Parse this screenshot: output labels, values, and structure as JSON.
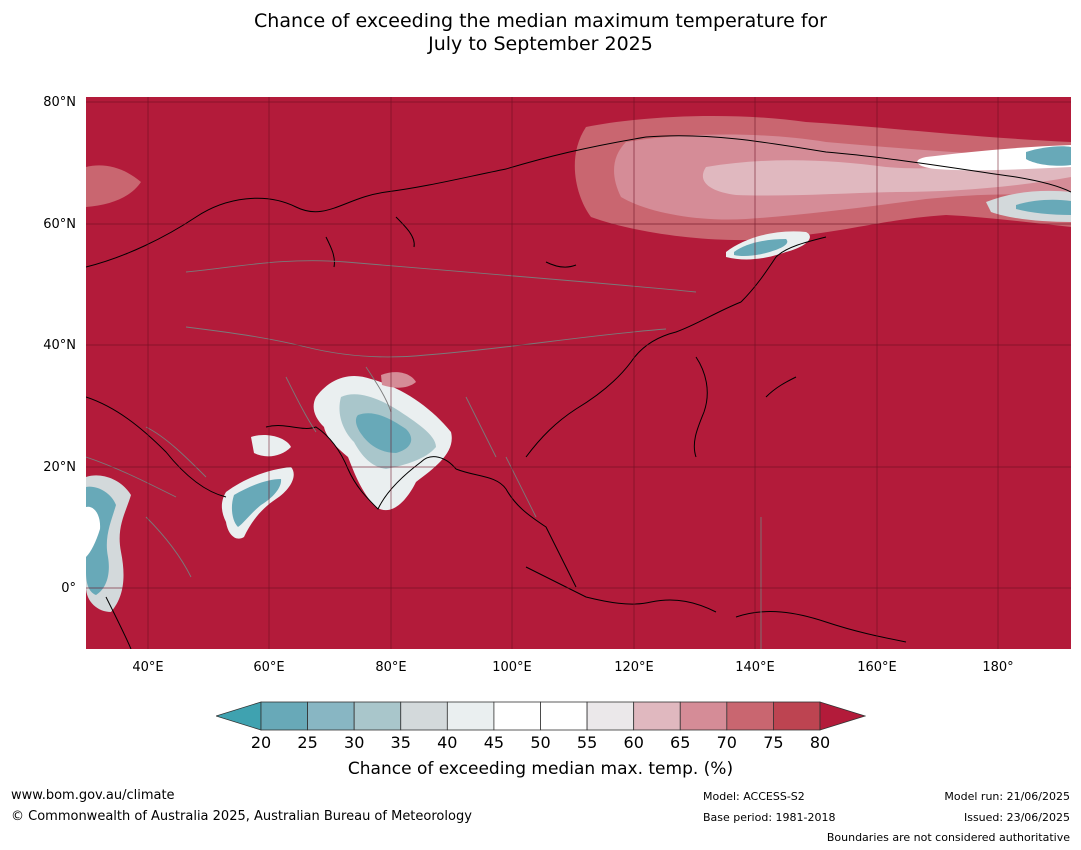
{
  "title": {
    "line1": "Chance of exceeding the median maximum temperature for",
    "line2": "July to September 2025"
  },
  "map": {
    "lat_labels": [
      "80°N",
      "60°N",
      "40°N",
      "20°N",
      "0°"
    ],
    "lon_labels": [
      "40°E",
      "60°E",
      "80°E",
      "100°E",
      "120°E",
      "140°E",
      "160°E",
      "180°"
    ],
    "base_color": "#b31b3a"
  },
  "colorbar": {
    "label": "Chance of exceeding median max. temp. (%)",
    "ticks": [
      "20",
      "25",
      "30",
      "35",
      "40",
      "45",
      "50",
      "55",
      "60",
      "65",
      "70",
      "75",
      "80"
    ],
    "low_extend_color": "#3fa2b0",
    "high_extend_color": "#b31b3a",
    "bin_colors": [
      "#68a9b8",
      "#88b6c3",
      "#a9c6cb",
      "#d3d9db",
      "#eaeff0",
      "#ffffff",
      "#ffffff",
      "#ebe8ea",
      "#e0b8bf",
      "#d58c97",
      "#c96670",
      "#bd4451"
    ]
  },
  "footer": {
    "website": "www.bom.gov.au/climate",
    "copyright": "© Commonwealth of Australia 2025, Australian Bureau of Meteorology",
    "model": "Model: ACCESS-S2",
    "base_period": "Base period: 1981-2018",
    "model_run": "Model run: 21/06/2025",
    "issued": "Issued: 23/06/2025",
    "disclaimer": "Boundaries are not considered authoritative"
  }
}
